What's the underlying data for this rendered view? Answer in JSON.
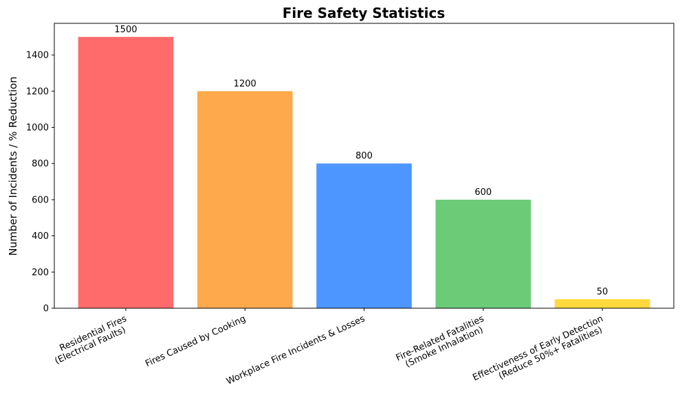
{
  "chart_data": {
    "type": "bar",
    "title": "Fire Safety Statistics",
    "xlabel": "",
    "ylabel": "Number of Incidents / % Reduction",
    "ylim": [
      0,
      1575
    ],
    "yticks": [
      0,
      200,
      400,
      600,
      800,
      1000,
      1200,
      1400
    ],
    "grid": false,
    "categories": [
      "Residential Fires\n(Electrical Faults)",
      "Fires Caused by Cooking",
      "Workplace Fire Incidents & Losses",
      "Fire-Related Fatalities\n(Smoke Inhalation)",
      "Effectiveness of Early Detection\n(Reduce 50%+ Fatalities)"
    ],
    "values": [
      1500,
      1200,
      800,
      600,
      50
    ],
    "colors": [
      "#ff6b6b",
      "#ffa94d",
      "#4d96ff",
      "#6bcb77",
      "#ffd93d"
    ]
  }
}
